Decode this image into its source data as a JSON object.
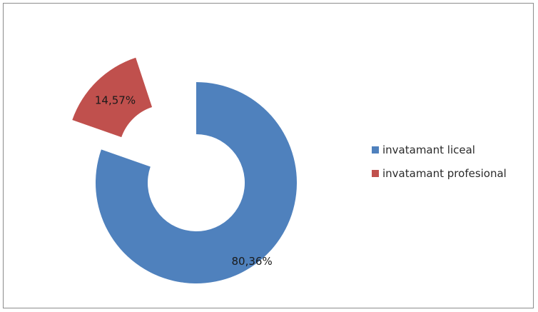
{
  "chart_data": {
    "type": "pie",
    "variant": "exploded-doughnut",
    "title": "",
    "legend_position": "right",
    "series": [
      {
        "name": "invatamant liceal",
        "value": 80.36,
        "label": "80,36%",
        "color": "#4f81bd"
      },
      {
        "name": "invatamant profesional",
        "value": 14.57,
        "label": "14,57%",
        "color": "#c0504d"
      }
    ]
  }
}
